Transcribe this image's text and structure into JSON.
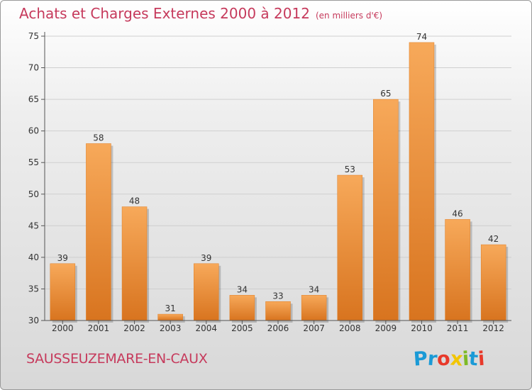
{
  "chart_data": {
    "type": "bar",
    "title": "Achats et Charges Externes 2000 à 2012",
    "subtitle": "(en milliers d'€)",
    "categories": [
      "2000",
      "2001",
      "2002",
      "2003",
      "2004",
      "2005",
      "2006",
      "2007",
      "2008",
      "2009",
      "2010",
      "2011",
      "2012"
    ],
    "values": [
      39,
      58,
      48,
      31,
      39,
      34,
      33,
      34,
      53,
      65,
      74,
      46,
      42
    ],
    "data_labels": [
      "39",
      "58",
      "48",
      "31",
      "39",
      "34",
      "33",
      "34",
      "53",
      "65",
      "74",
      "46",
      "42"
    ],
    "y_ticks": [
      "30",
      "35",
      "40",
      "45",
      "50",
      "55",
      "60",
      "65",
      "70",
      "75"
    ],
    "ylim": [
      30,
      75
    ],
    "grid": true,
    "bar_color": "#f0923c"
  },
  "commune": "SAUSSEUZEMARE-EN-CAUX",
  "logo": {
    "letters": [
      "P",
      "r",
      "o",
      "x",
      "i",
      "t",
      "i"
    ],
    "colors": [
      "#1a9ad6",
      "#1a9ad6",
      "#e8392a",
      "#f2c500",
      "#7dba26",
      "#1a9ad6",
      "#e8392a"
    ]
  },
  "colors": {
    "title": "#c63a5c",
    "bar_light": "#f7a95a",
    "bar_dark": "#d8741f",
    "grid": "#cfcfcf",
    "axis": "#555555"
  }
}
